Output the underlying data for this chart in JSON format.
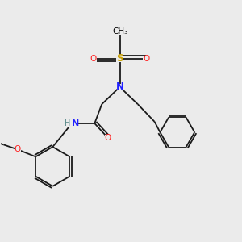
{
  "background_color": "#ebebeb",
  "bond_color": "#1a1a1a",
  "colors": {
    "N": "#2020ff",
    "O": "#ff2020",
    "S": "#c8a000",
    "H": "#5a8a8a"
  },
  "figsize": [
    3.0,
    3.0
  ],
  "dpi": 100
}
